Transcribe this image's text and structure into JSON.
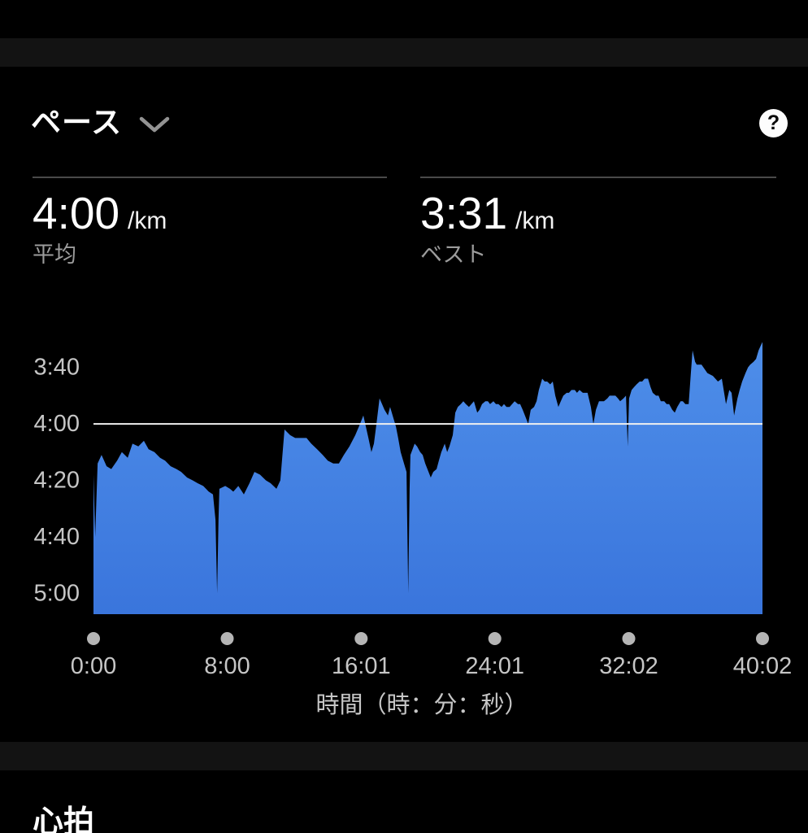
{
  "header": {
    "title": "ペース",
    "help_label": "?"
  },
  "stats": [
    {
      "value": "4:00",
      "unit": "/km",
      "label": "平均"
    },
    {
      "value": "3:31",
      "unit": "/km",
      "label": "ベスト"
    }
  ],
  "next_section": {
    "title": "心拍"
  },
  "chart_data": {
    "type": "area",
    "title": "ペース",
    "xlabel": "時間（時：分：秒）",
    "ylabel": "",
    "x_unit": "elapsed time (h:mm:ss) in seconds",
    "y_unit": "pace in seconds per km",
    "y_axis_inverted": true,
    "grid": false,
    "legend": false,
    "x_max": 2402,
    "ylim_sec": [
      208,
      307.4
    ],
    "x_ticks": [
      {
        "label": "0:00",
        "sec": 0
      },
      {
        "label": "8:00",
        "sec": 480
      },
      {
        "label": "16:01",
        "sec": 961
      },
      {
        "label": "24:01",
        "sec": 1441
      },
      {
        "label": "32:02",
        "sec": 1922
      },
      {
        "label": "40:02",
        "sec": 2402
      }
    ],
    "y_ticks": [
      {
        "label": "3:40",
        "sec": 220
      },
      {
        "label": "4:00",
        "sec": 240
      },
      {
        "label": "4:20",
        "sec": 260
      },
      {
        "label": "4:40",
        "sec": 280
      },
      {
        "label": "5:00",
        "sec": 300
      }
    ],
    "avg_pace_label": "4:00",
    "avg_pace_sec": 240,
    "best_pace_label": "3:31",
    "best_pace_sec": 211,
    "area_color_top": "#4E8EE9",
    "area_color_bottom": "#3A75DC",
    "avg_line_color": "#F0F0F0",
    "axis_text_color": "#c6c6c6",
    "tick_dot_color": "#b5b5b5",
    "points": [
      [
        0,
        258
      ],
      [
        6,
        280
      ],
      [
        15,
        254
      ],
      [
        29,
        251
      ],
      [
        47,
        255
      ],
      [
        64,
        256
      ],
      [
        85,
        253
      ],
      [
        102,
        250
      ],
      [
        123,
        252
      ],
      [
        140,
        247
      ],
      [
        161,
        248
      ],
      [
        181,
        246
      ],
      [
        198,
        249
      ],
      [
        219,
        250
      ],
      [
        239,
        252
      ],
      [
        257,
        253
      ],
      [
        277,
        255
      ],
      [
        298,
        256
      ],
      [
        315,
        257
      ],
      [
        336,
        259
      ],
      [
        356,
        260
      ],
      [
        374,
        261
      ],
      [
        394,
        262
      ],
      [
        414,
        264
      ],
      [
        429,
        265
      ],
      [
        438,
        274
      ],
      [
        444,
        300
      ],
      [
        449,
        274
      ],
      [
        452,
        263
      ],
      [
        473,
        262
      ],
      [
        490,
        263
      ],
      [
        502,
        264
      ],
      [
        520,
        262
      ],
      [
        540,
        265
      ],
      [
        560,
        261
      ],
      [
        578,
        257
      ],
      [
        598,
        258
      ],
      [
        619,
        260
      ],
      [
        636,
        261
      ],
      [
        657,
        263
      ],
      [
        671,
        260
      ],
      [
        686,
        242
      ],
      [
        706,
        244
      ],
      [
        724,
        245
      ],
      [
        744,
        245
      ],
      [
        765,
        245
      ],
      [
        782,
        247
      ],
      [
        803,
        249
      ],
      [
        823,
        251
      ],
      [
        841,
        253
      ],
      [
        861,
        254
      ],
      [
        881,
        254
      ],
      [
        899,
        251
      ],
      [
        919,
        248
      ],
      [
        940,
        244
      ],
      [
        957,
        240
      ],
      [
        969,
        237
      ],
      [
        978,
        241
      ],
      [
        987,
        245
      ],
      [
        998,
        250
      ],
      [
        1007,
        247
      ],
      [
        1016,
        240
      ],
      [
        1027,
        231
      ],
      [
        1036,
        233
      ],
      [
        1045,
        235
      ],
      [
        1057,
        237
      ],
      [
        1065,
        234
      ],
      [
        1074,
        237
      ],
      [
        1086,
        241
      ],
      [
        1094,
        245
      ],
      [
        1103,
        250
      ],
      [
        1115,
        254
      ],
      [
        1124,
        257
      ],
      [
        1130,
        300
      ],
      [
        1135,
        263
      ],
      [
        1138,
        251
      ],
      [
        1153,
        247
      ],
      [
        1162,
        248
      ],
      [
        1173,
        250
      ],
      [
        1182,
        251
      ],
      [
        1191,
        254
      ],
      [
        1203,
        257
      ],
      [
        1211,
        259
      ],
      [
        1220,
        257
      ],
      [
        1232,
        256
      ],
      [
        1240,
        253
      ],
      [
        1249,
        250
      ],
      [
        1261,
        247
      ],
      [
        1270,
        250
      ],
      [
        1278,
        248
      ],
      [
        1290,
        244
      ],
      [
        1299,
        236
      ],
      [
        1308,
        234
      ],
      [
        1319,
        233
      ],
      [
        1328,
        232
      ],
      [
        1337,
        233
      ],
      [
        1348,
        234
      ],
      [
        1357,
        233
      ],
      [
        1366,
        232
      ],
      [
        1378,
        236
      ],
      [
        1386,
        235
      ],
      [
        1395,
        233
      ],
      [
        1407,
        232
      ],
      [
        1416,
        232
      ],
      [
        1424,
        233
      ],
      [
        1436,
        232
      ],
      [
        1445,
        233
      ],
      [
        1454,
        233
      ],
      [
        1465,
        234
      ],
      [
        1474,
        233
      ],
      [
        1483,
        234
      ],
      [
        1494,
        234
      ],
      [
        1503,
        233
      ],
      [
        1512,
        232
      ],
      [
        1524,
        233
      ],
      [
        1532,
        233
      ],
      [
        1541,
        235
      ],
      [
        1553,
        238
      ],
      [
        1561,
        240
      ],
      [
        1570,
        235
      ],
      [
        1582,
        234
      ],
      [
        1591,
        232
      ],
      [
        1599,
        228
      ],
      [
        1611,
        224
      ],
      [
        1620,
        225
      ],
      [
        1629,
        225
      ],
      [
        1640,
        226
      ],
      [
        1649,
        225
      ],
      [
        1658,
        230
      ],
      [
        1669,
        234
      ],
      [
        1678,
        232
      ],
      [
        1687,
        230
      ],
      [
        1699,
        229
      ],
      [
        1707,
        229
      ],
      [
        1716,
        228
      ],
      [
        1728,
        228
      ],
      [
        1736,
        229
      ],
      [
        1745,
        228
      ],
      [
        1757,
        229
      ],
      [
        1766,
        229
      ],
      [
        1774,
        229
      ],
      [
        1786,
        234
      ],
      [
        1795,
        240
      ],
      [
        1804,
        235
      ],
      [
        1815,
        232
      ],
      [
        1824,
        232
      ],
      [
        1833,
        232
      ],
      [
        1845,
        231
      ],
      [
        1853,
        230
      ],
      [
        1862,
        230
      ],
      [
        1874,
        230
      ],
      [
        1883,
        231
      ],
      [
        1891,
        232
      ],
      [
        1903,
        231
      ],
      [
        1912,
        230
      ],
      [
        1918,
        248
      ],
      [
        1923,
        231
      ],
      [
        1932,
        228
      ],
      [
        1941,
        227
      ],
      [
        1950,
        226
      ],
      [
        1961,
        225
      ],
      [
        1970,
        225
      ],
      [
        1979,
        224
      ],
      [
        1991,
        224
      ],
      [
        2000,
        227
      ],
      [
        2008,
        229
      ],
      [
        2020,
        230
      ],
      [
        2029,
        230
      ],
      [
        2037,
        232
      ],
      [
        2049,
        232
      ],
      [
        2058,
        233
      ],
      [
        2067,
        233
      ],
      [
        2078,
        235
      ],
      [
        2087,
        236
      ],
      [
        2096,
        234
      ],
      [
        2108,
        232
      ],
      [
        2116,
        232
      ],
      [
        2125,
        233
      ],
      [
        2137,
        233
      ],
      [
        2145,
        222
      ],
      [
        2151,
        214
      ],
      [
        2160,
        218
      ],
      [
        2166,
        219
      ],
      [
        2183,
        219
      ],
      [
        2204,
        222
      ],
      [
        2224,
        223
      ],
      [
        2242,
        225
      ],
      [
        2256,
        224
      ],
      [
        2271,
        233
      ],
      [
        2283,
        228
      ],
      [
        2291,
        229
      ],
      [
        2300,
        237
      ],
      [
        2312,
        231
      ],
      [
        2320,
        228
      ],
      [
        2329,
        225
      ],
      [
        2341,
        222
      ],
      [
        2350,
        220
      ],
      [
        2358,
        219
      ],
      [
        2370,
        218
      ],
      [
        2379,
        217
      ],
      [
        2388,
        214
      ],
      [
        2397,
        212
      ],
      [
        2402,
        211
      ]
    ]
  }
}
